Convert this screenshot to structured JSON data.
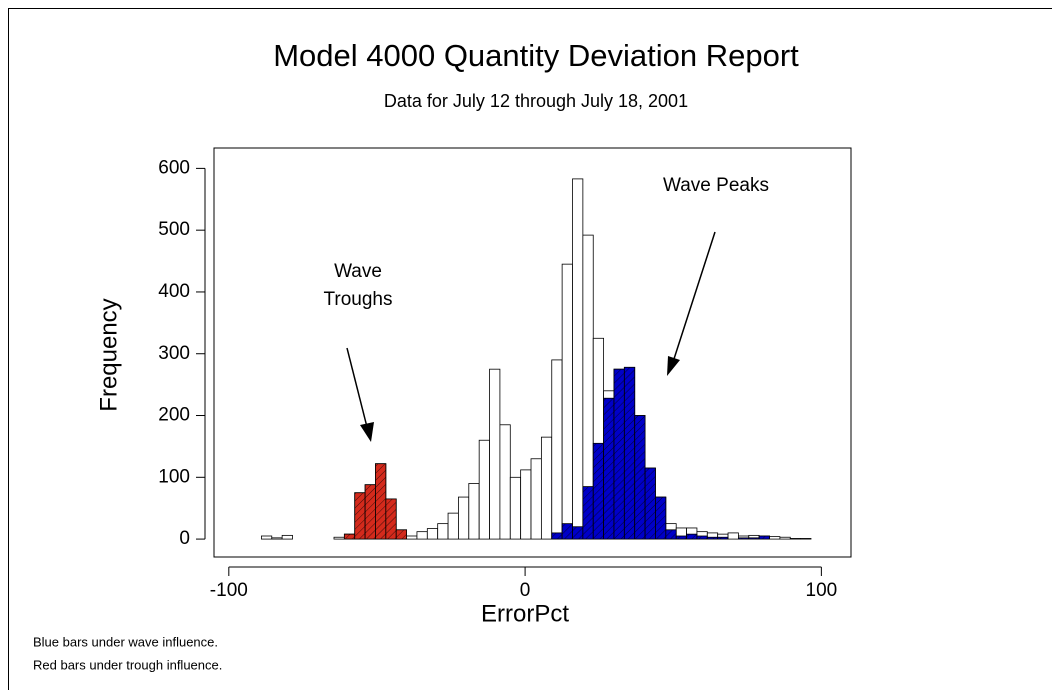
{
  "chart_data": {
    "type": "histogram",
    "title": "Model 4000 Quantity Deviation Report",
    "subtitle": "Data for July 12 through July 18, 2001",
    "x_label": "ErrorPct",
    "y_label": "Frequency",
    "bins": [
      -89,
      -85.5,
      -82,
      -78.5,
      -75,
      -71.5,
      -68,
      -64.5,
      -61,
      -57.5,
      -54,
      -50.5,
      -47,
      -43.5,
      -40,
      -36.5,
      -33,
      -29.5,
      -26,
      -22.5,
      -19,
      -15.5,
      -12,
      -8.5,
      -5,
      -1.5,
      2,
      5.5,
      9,
      12.5,
      16,
      19.5,
      23,
      26.5,
      30,
      33.5,
      37,
      40.5,
      44,
      47.5,
      51,
      54.5,
      58,
      61.5,
      65,
      68.5,
      72,
      75.5,
      79,
      82.5,
      86,
      89.5,
      93,
      96.5,
      100
    ],
    "series": [
      {
        "color": "#ffffff",
        "values": [
          5,
          2,
          6,
          0,
          0,
          0,
          0,
          3,
          8,
          75,
          88,
          122,
          65,
          15,
          5,
          12,
          17,
          25,
          42,
          68,
          90,
          160,
          275,
          185,
          100,
          112,
          130,
          165,
          290,
          445,
          583,
          492,
          325,
          240,
          275,
          278,
          200,
          115,
          68,
          25,
          18,
          18,
          12,
          10,
          8,
          10,
          5,
          6,
          5,
          4,
          3,
          1,
          1,
          0
        ]
      },
      {
        "color": "#0000c8",
        "values": [
          0,
          0,
          0,
          0,
          0,
          0,
          0,
          0,
          0,
          0,
          0,
          0,
          0,
          0,
          0,
          0,
          0,
          0,
          0,
          0,
          0,
          0,
          0,
          0,
          0,
          0,
          0,
          0,
          10,
          25,
          20,
          85,
          155,
          228,
          275,
          278,
          200,
          115,
          68,
          15,
          5,
          8,
          5,
          3,
          3,
          0,
          2,
          2,
          5,
          0,
          0,
          0,
          0,
          0
        ]
      },
      {
        "color": "#d42a1c",
        "values": [
          0,
          0,
          0,
          0,
          0,
          0,
          0,
          0,
          8,
          75,
          88,
          122,
          65,
          15,
          0,
          0,
          0,
          0,
          0,
          0,
          0,
          0,
          0,
          0,
          0,
          0,
          0,
          0,
          0,
          0,
          0,
          0,
          0,
          0,
          0,
          0,
          0,
          0,
          0,
          0,
          0,
          0,
          0,
          0,
          0,
          0,
          0,
          0,
          0,
          0,
          0,
          0,
          0,
          0
        ]
      }
    ],
    "xlim": [
      -105,
      110
    ],
    "ylim": [
      -29,
      633
    ],
    "xticks": [
      -100,
      0,
      100
    ],
    "yticks": [
      0,
      100,
      200,
      300,
      400,
      500,
      600
    ],
    "annotations": [
      "Wave Peaks",
      "Wave",
      "Troughs"
    ],
    "footnotes": [
      "Blue bars under wave influence.",
      "Red bars under trough influence."
    ]
  }
}
